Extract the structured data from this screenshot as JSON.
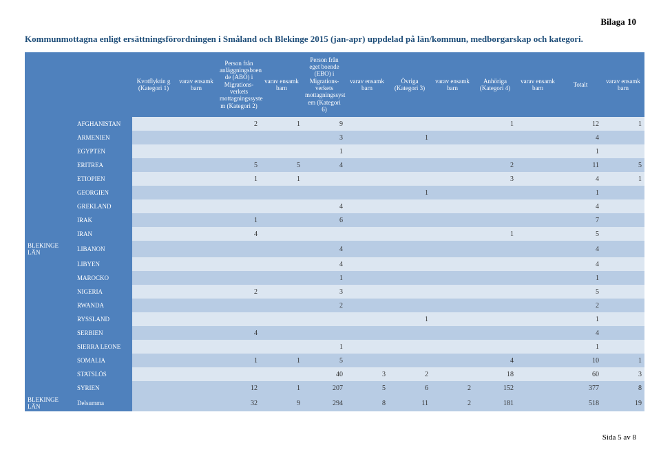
{
  "bilaga": "Bilaga 10",
  "title": "Kommunmottagna enligt ersättningsförordningen i Småland och Blekinge 2015 (jan-apr) uppdelad på län/kommun, medborgarskap och kategori.",
  "columns": [
    "Kvotflyktin g (Kategori 1)",
    "varav ensamk barn",
    "Person från anläggningsboen de (ABO) i Migrations- verkets mottagningssyste m (Kategori 2)",
    "varav ensamk barn",
    "Person från eget boende (EBO) i Migrations- verkets mottagningssyst em (Kategori 6)",
    "varav ensamk barn",
    "Övriga (Kategori 3)",
    "varav ensamk barn",
    "Anhöriga (Kategori 4)",
    "varav ensamk barn",
    "Totalt",
    "varav ensamk barn"
  ],
  "region": "BLEKINGE LÄN",
  "rows": [
    {
      "country": "AFGHANISTAN",
      "v": [
        "",
        "",
        "2",
        "1",
        "9",
        "",
        "",
        "",
        "1",
        "",
        "12",
        "1"
      ]
    },
    {
      "country": "ARMENIEN",
      "v": [
        "",
        "",
        "",
        "",
        "3",
        "",
        "1",
        "",
        "",
        "",
        "4",
        ""
      ]
    },
    {
      "country": "EGYPTEN",
      "v": [
        "",
        "",
        "",
        "",
        "1",
        "",
        "",
        "",
        "",
        "",
        "1",
        ""
      ]
    },
    {
      "country": "ERITREA",
      "v": [
        "",
        "",
        "5",
        "5",
        "4",
        "",
        "",
        "",
        "2",
        "",
        "11",
        "5"
      ]
    },
    {
      "country": "ETIOPIEN",
      "v": [
        "",
        "",
        "1",
        "1",
        "",
        "",
        "",
        "",
        "3",
        "",
        "4",
        "1"
      ]
    },
    {
      "country": "GEORGIEN",
      "v": [
        "",
        "",
        "",
        "",
        "",
        "",
        "1",
        "",
        "",
        "",
        "1",
        ""
      ]
    },
    {
      "country": "GREKLAND",
      "v": [
        "",
        "",
        "",
        "",
        "4",
        "",
        "",
        "",
        "",
        "",
        "4",
        ""
      ]
    },
    {
      "country": "IRAK",
      "v": [
        "",
        "",
        "1",
        "",
        "6",
        "",
        "",
        "",
        "",
        "",
        "7",
        ""
      ]
    },
    {
      "country": "IRAN",
      "v": [
        "",
        "",
        "4",
        "",
        "",
        "",
        "",
        "",
        "1",
        "",
        "5",
        ""
      ]
    },
    {
      "country": "LIBANON",
      "v": [
        "",
        "",
        "",
        "",
        "4",
        "",
        "",
        "",
        "",
        "",
        "4",
        ""
      ]
    },
    {
      "country": "LIBYEN",
      "v": [
        "",
        "",
        "",
        "",
        "4",
        "",
        "",
        "",
        "",
        "",
        "4",
        ""
      ]
    },
    {
      "country": "MAROCKO",
      "v": [
        "",
        "",
        "",
        "",
        "1",
        "",
        "",
        "",
        "",
        "",
        "1",
        ""
      ]
    },
    {
      "country": "NIGERIA",
      "v": [
        "",
        "",
        "2",
        "",
        "3",
        "",
        "",
        "",
        "",
        "",
        "5",
        ""
      ]
    },
    {
      "country": "RWANDA",
      "v": [
        "",
        "",
        "",
        "",
        "2",
        "",
        "",
        "",
        "",
        "",
        "2",
        ""
      ]
    },
    {
      "country": "RYSSLAND",
      "v": [
        "",
        "",
        "",
        "",
        "",
        "",
        "1",
        "",
        "",
        "",
        "1",
        ""
      ]
    },
    {
      "country": "SERBIEN",
      "v": [
        "",
        "",
        "4",
        "",
        "",
        "",
        "",
        "",
        "",
        "",
        "4",
        ""
      ]
    },
    {
      "country": "SIERRA LEONE",
      "v": [
        "",
        "",
        "",
        "",
        "1",
        "",
        "",
        "",
        "",
        "",
        "1",
        ""
      ]
    },
    {
      "country": "SOMALIA",
      "v": [
        "",
        "",
        "1",
        "1",
        "5",
        "",
        "",
        "",
        "4",
        "",
        "10",
        "1"
      ]
    },
    {
      "country": "STATSLÖS",
      "v": [
        "",
        "",
        "",
        "",
        "40",
        "3",
        "2",
        "",
        "18",
        "",
        "60",
        "3"
      ]
    },
    {
      "country": "SYRIEN",
      "v": [
        "",
        "",
        "12",
        "1",
        "207",
        "5",
        "6",
        "2",
        "152",
        "",
        "377",
        "8"
      ]
    }
  ],
  "sum": {
    "region": "BLEKINGE LÄN",
    "country": "Delsumma",
    "v": [
      "",
      "",
      "32",
      "9",
      "294",
      "8",
      "11",
      "2",
      "181",
      "",
      "518",
      "19"
    ]
  },
  "footer": "Sida 5 av 8",
  "colors": {
    "header_bg": "#4f81bd",
    "band_even": "#dce6f1",
    "band_odd": "#b8cce4",
    "title_color": "#1f4e79"
  }
}
